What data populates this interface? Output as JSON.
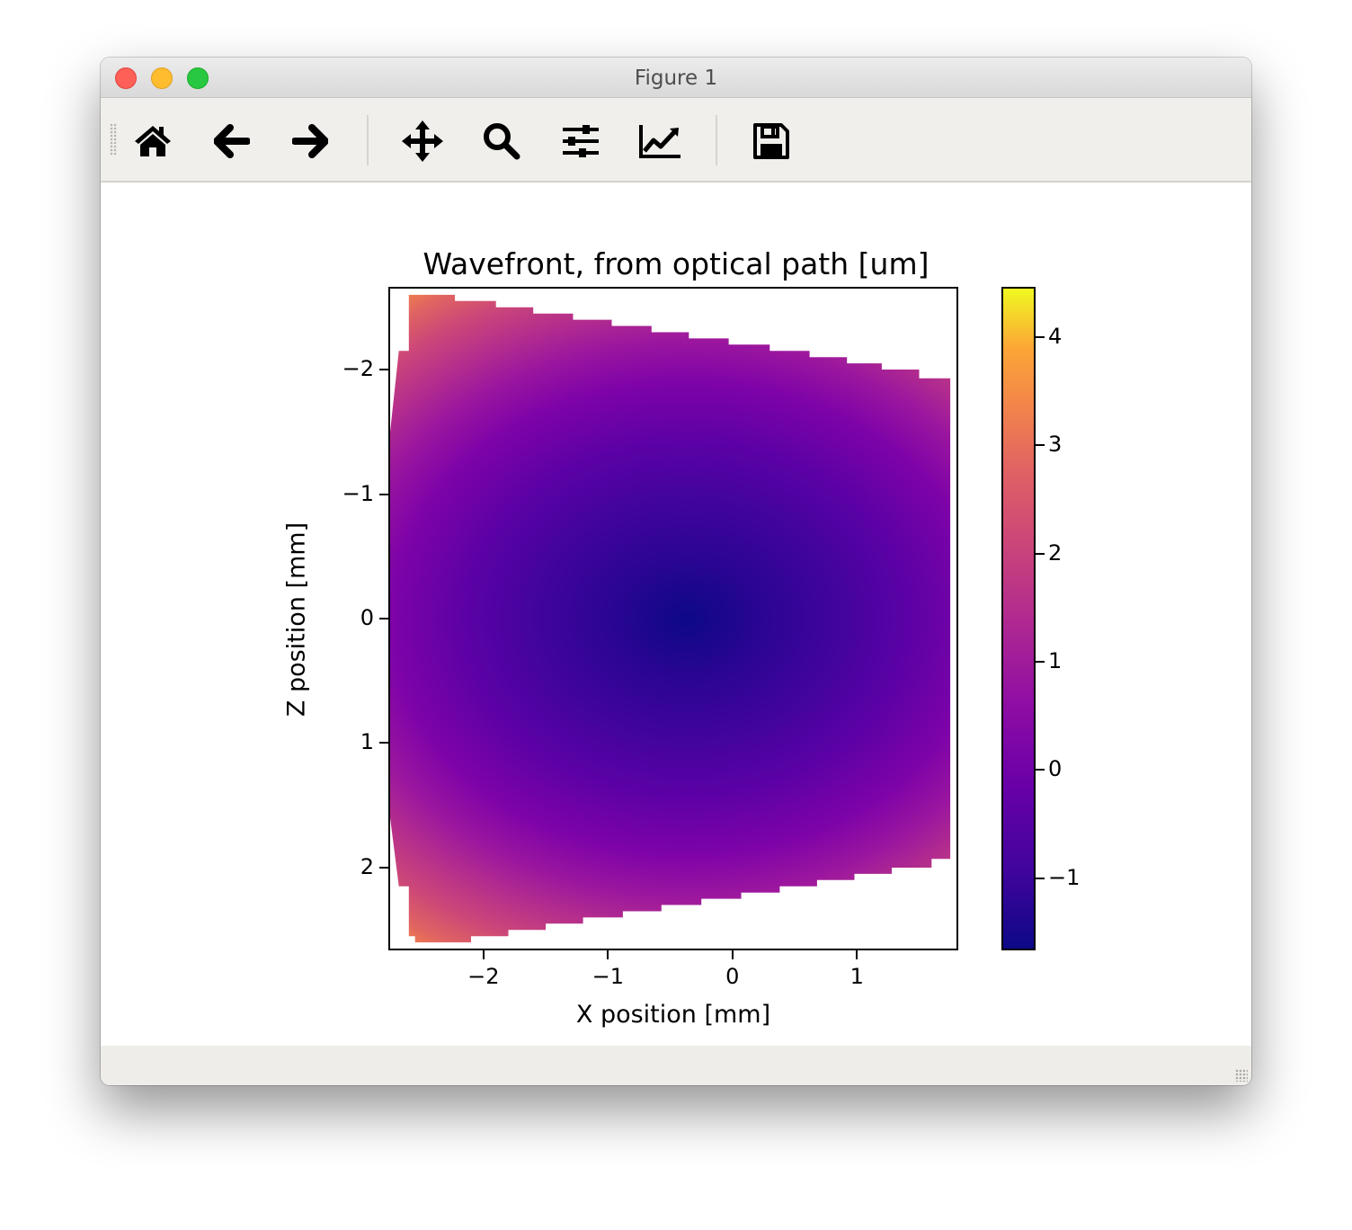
{
  "window": {
    "title": "Figure 1"
  },
  "toolbar": {
    "buttons": [
      {
        "id": "home",
        "icon": "home-icon"
      },
      {
        "id": "back",
        "icon": "back-arrow-icon"
      },
      {
        "id": "forward",
        "icon": "forward-arrow-icon"
      },
      {
        "id": "pan",
        "icon": "move-icon"
      },
      {
        "id": "zoom",
        "icon": "zoom-icon"
      },
      {
        "id": "subplots",
        "icon": "sliders-icon"
      },
      {
        "id": "customize",
        "icon": "line-chart-icon"
      },
      {
        "id": "save",
        "icon": "save-icon"
      }
    ]
  },
  "chart_data": {
    "type": "heatmap",
    "title": "Wavefront, from optical path [um]",
    "xlabel": "X position [mm]",
    "ylabel": "Z position [mm]",
    "xlim": [
      -2.75,
      1.8
    ],
    "ylim": [
      2.65,
      -2.65
    ],
    "x_ticks": [
      -2,
      -1,
      0,
      1
    ],
    "x_tick_labels": [
      "−2",
      "−1",
      "0",
      "1"
    ],
    "y_ticks": [
      -2,
      -1,
      0,
      1,
      2
    ],
    "y_tick_labels": [
      "−2",
      "−1",
      "0",
      "1",
      "2"
    ],
    "colormap": "plasma",
    "colorbar": {
      "range": [
        -1.65,
        4.45
      ],
      "ticks": [
        -1,
        0,
        1,
        2,
        3,
        4
      ],
      "tick_labels": [
        "−1",
        "0",
        "1",
        "2",
        "3",
        "4"
      ]
    },
    "minimum_location": {
      "x": -0.45,
      "z": 0.0
    },
    "aperture": {
      "top_edge": [
        {
          "x0": -2.68,
          "x1": -2.6,
          "z": -2.15
        },
        {
          "x0": -2.6,
          "x1": -2.23,
          "z": -2.6
        },
        {
          "x0": -2.23,
          "x1": -1.9,
          "z": -2.55
        },
        {
          "x0": -1.9,
          "x1": -1.6,
          "z": -2.5
        },
        {
          "x0": -1.6,
          "x1": -1.28,
          "z": -2.45
        },
        {
          "x0": -1.28,
          "x1": -0.97,
          "z": -2.4
        },
        {
          "x0": -0.97,
          "x1": -0.65,
          "z": -2.35
        },
        {
          "x0": -0.65,
          "x1": -0.35,
          "z": -2.3
        },
        {
          "x0": -0.35,
          "x1": -0.03,
          "z": -2.25
        },
        {
          "x0": -0.03,
          "x1": 0.3,
          "z": -2.2
        },
        {
          "x0": 0.3,
          "x1": 0.62,
          "z": -2.15
        },
        {
          "x0": 0.62,
          "x1": 0.92,
          "z": -2.1
        },
        {
          "x0": 0.92,
          "x1": 1.2,
          "z": -2.05
        },
        {
          "x0": 1.2,
          "x1": 1.5,
          "z": -2.0
        },
        {
          "x0": 1.5,
          "x1": 1.75,
          "z": -1.93
        }
      ],
      "bottom_edge": [
        {
          "x0": -2.68,
          "x1": -2.6,
          "z": 2.15
        },
        {
          "x0": -2.6,
          "x1": -2.55,
          "z": 2.55
        },
        {
          "x0": -2.55,
          "x1": -2.1,
          "z": 2.6
        },
        {
          "x0": -2.1,
          "x1": -1.8,
          "z": 2.55
        },
        {
          "x0": -1.8,
          "x1": -1.5,
          "z": 2.5
        },
        {
          "x0": -1.5,
          "x1": -1.2,
          "z": 2.45
        },
        {
          "x0": -1.2,
          "x1": -0.88,
          "z": 2.4
        },
        {
          "x0": -0.88,
          "x1": -0.57,
          "z": 2.35
        },
        {
          "x0": -0.57,
          "x1": -0.25,
          "z": 2.3
        },
        {
          "x0": -0.25,
          "x1": 0.07,
          "z": 2.25
        },
        {
          "x0": 0.07,
          "x1": 0.38,
          "z": 2.2
        },
        {
          "x0": 0.38,
          "x1": 0.68,
          "z": 2.15
        },
        {
          "x0": 0.68,
          "x1": 0.98,
          "z": 2.1
        },
        {
          "x0": 0.98,
          "x1": 1.28,
          "z": 2.05
        },
        {
          "x0": 1.28,
          "x1": 1.6,
          "z": 2.0
        },
        {
          "x0": 1.6,
          "x1": 1.75,
          "z": 1.93
        }
      ],
      "left_edge": {
        "x": -2.75,
        "z0": -1.5,
        "z1": 1.6
      },
      "right_edge": {
        "x": 1.75,
        "z0": -1.93,
        "z1": 1.93
      }
    }
  }
}
